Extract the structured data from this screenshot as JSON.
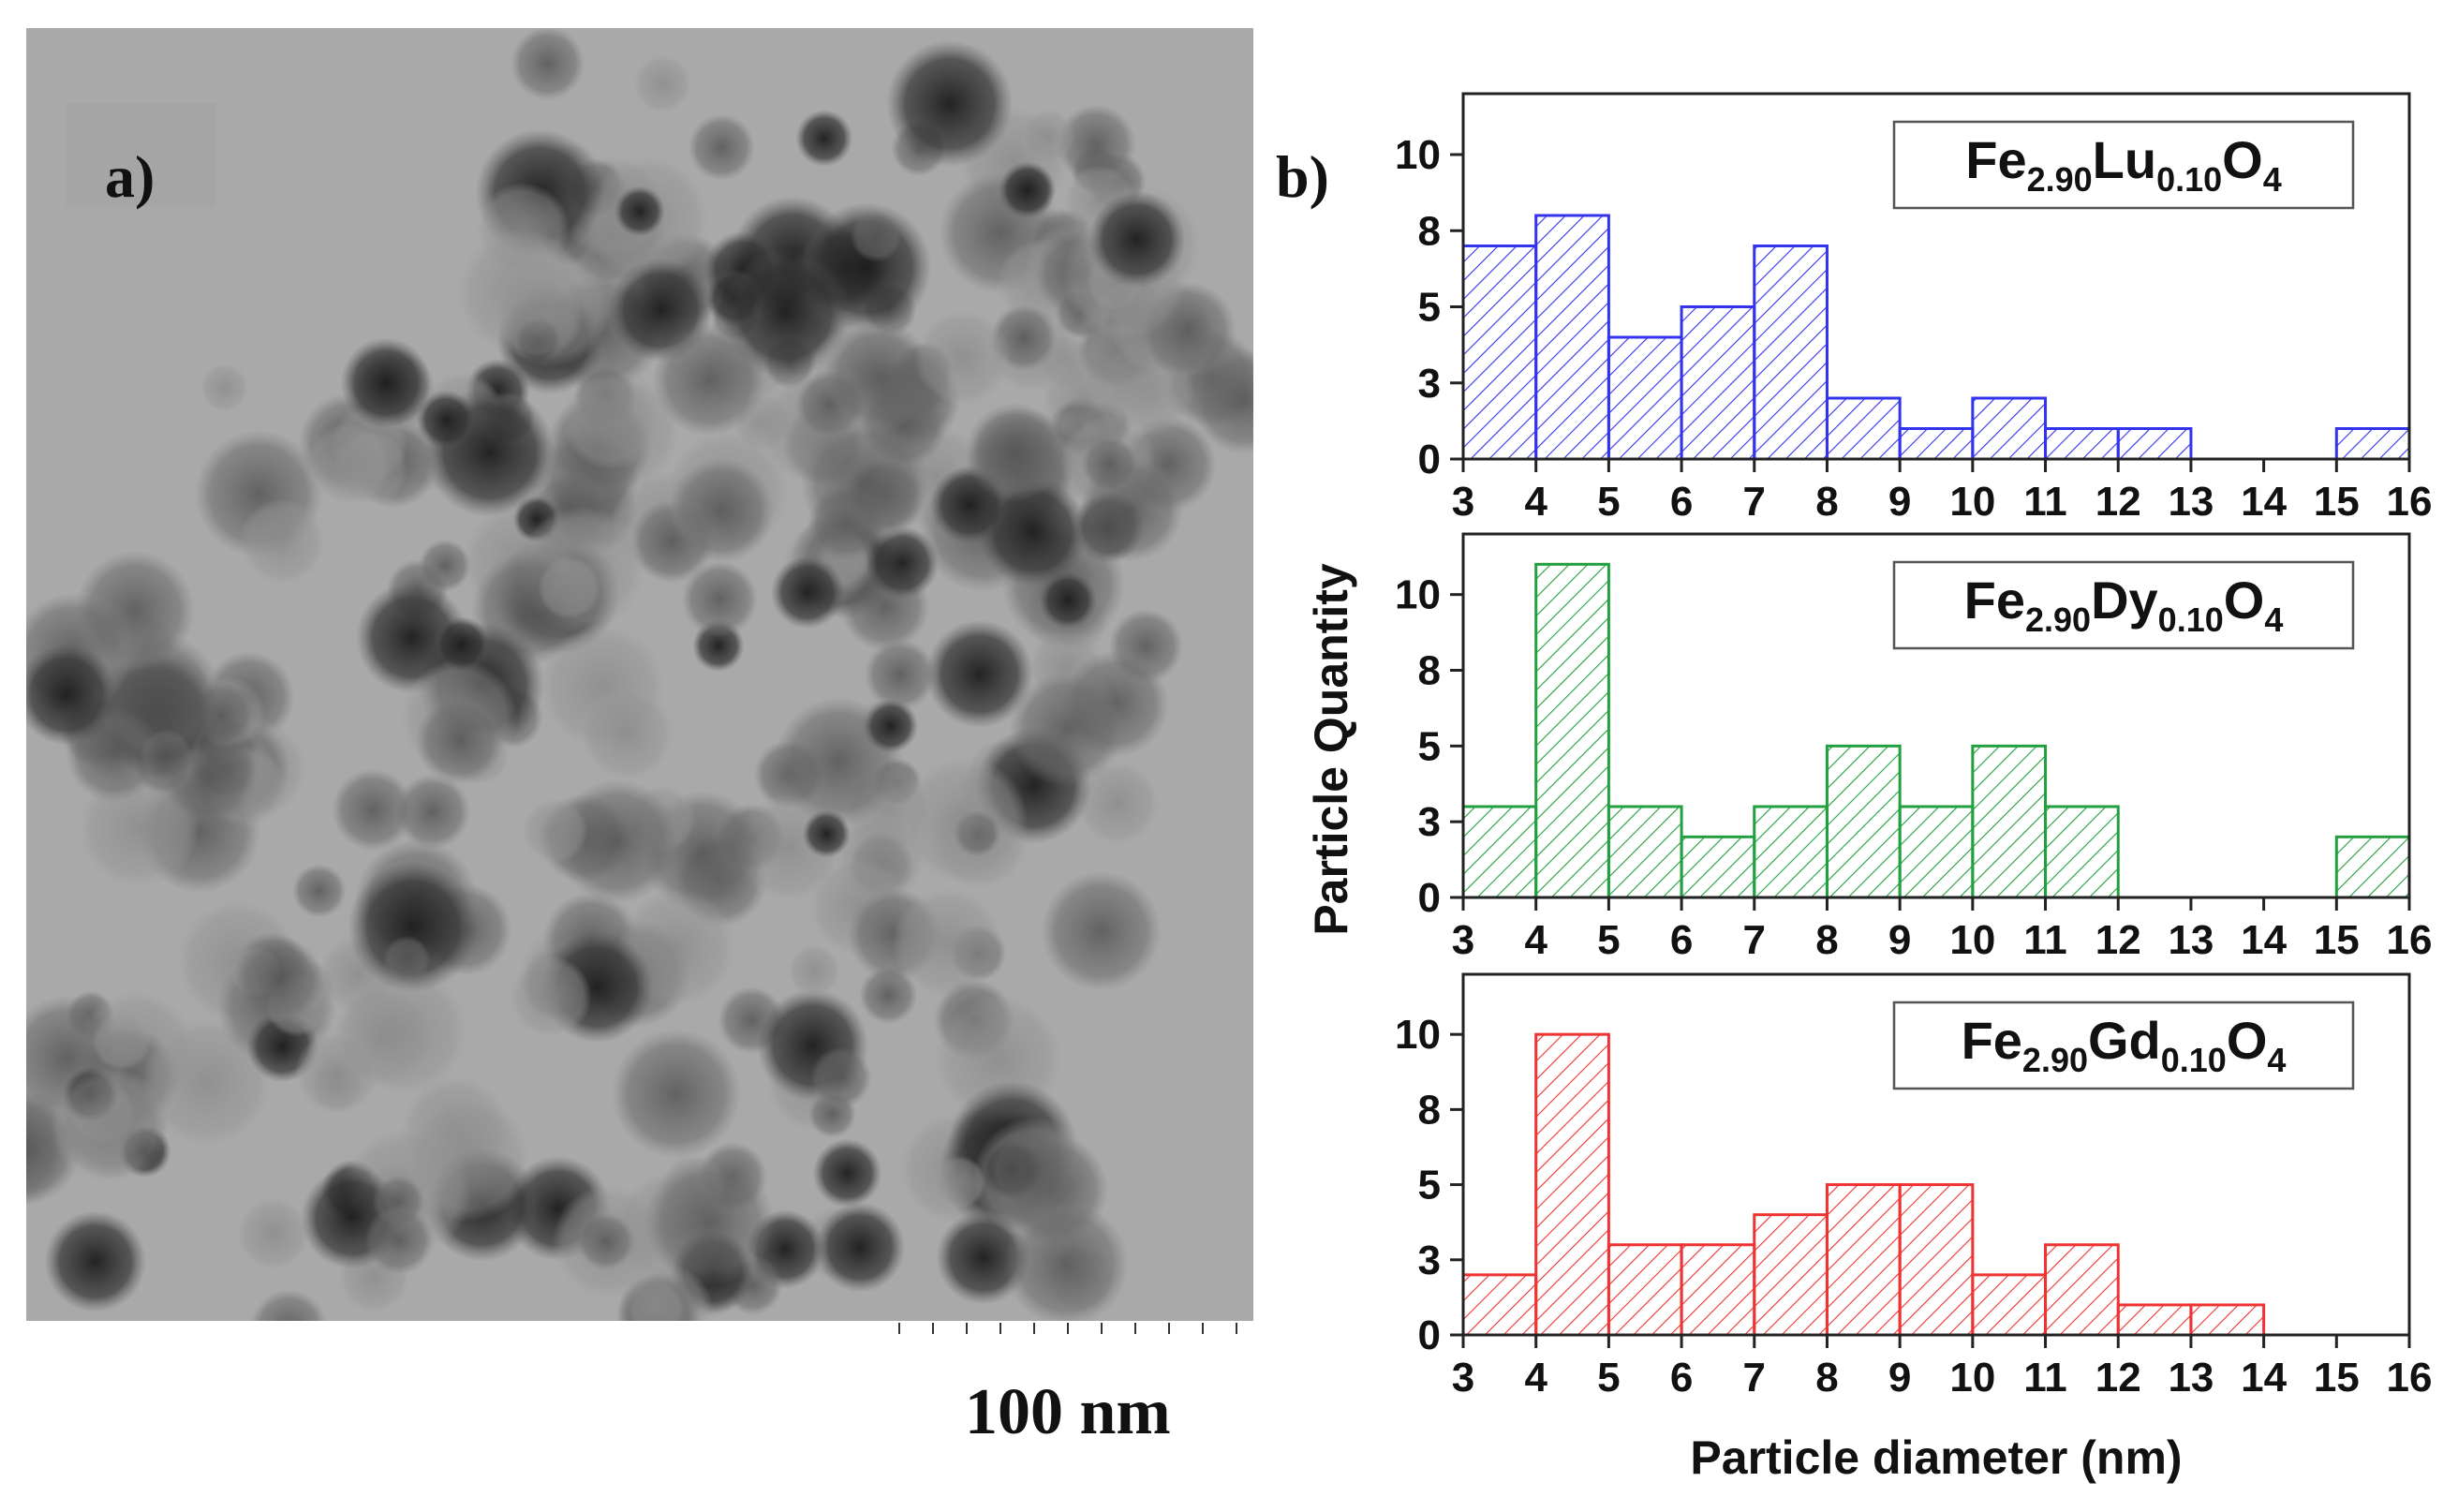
{
  "panel_a": {
    "label": "a)",
    "scale_bar_label": "100 nm"
  },
  "panel_b": {
    "label": "b)"
  },
  "colors": {
    "lu": "#3333ee",
    "dy": "#22a040",
    "gd": "#ee3333"
  },
  "chart_data": [
    {
      "type": "bar",
      "subtype": "histogram",
      "series_name": "Fe2.90Lu0.10O4",
      "legend": {
        "base": "Fe",
        "sub1": "2.90",
        "dopant": "Lu",
        "sub2": "0.10",
        "tail": "O",
        "sub3": "4"
      },
      "bin_edges": [
        3,
        4,
        5,
        6,
        7,
        8,
        9,
        10,
        11,
        12,
        13,
        14,
        15,
        16
      ],
      "values": [
        7,
        8,
        4,
        5,
        7,
        2,
        1,
        2,
        1,
        1,
        0,
        0,
        1
      ],
      "xlim": [
        3,
        16
      ],
      "ylim": [
        0,
        12
      ],
      "yticks": [
        "0",
        "3",
        "5",
        "8",
        "10"
      ],
      "ytick_values": [
        0,
        2.5,
        5,
        7.5,
        10
      ],
      "xticks": [
        "3",
        "4",
        "5",
        "6",
        "7",
        "8",
        "9",
        "10",
        "11",
        "12",
        "13",
        "14",
        "15",
        "16"
      ],
      "legend_position": "top-right",
      "color_key": "lu"
    },
    {
      "type": "bar",
      "subtype": "histogram",
      "series_name": "Fe2.90Dy0.10O4",
      "legend": {
        "base": "Fe",
        "sub1": "2.90",
        "dopant": "Dy",
        "sub2": "0.10",
        "tail": "O",
        "sub3": "4"
      },
      "bin_edges": [
        3,
        4,
        5,
        6,
        7,
        8,
        9,
        10,
        11,
        12,
        13,
        14,
        15,
        16
      ],
      "values": [
        3,
        11,
        3,
        2,
        3,
        5,
        3,
        5,
        3,
        0,
        0,
        0,
        2
      ],
      "xlim": [
        3,
        16
      ],
      "ylim": [
        0,
        12
      ],
      "yticks": [
        "0",
        "3",
        "5",
        "8",
        "10"
      ],
      "ytick_values": [
        0,
        2.5,
        5,
        7.5,
        10
      ],
      "xticks": [
        "3",
        "4",
        "5",
        "6",
        "7",
        "8",
        "9",
        "10",
        "11",
        "12",
        "13",
        "14",
        "15",
        "16"
      ],
      "legend_position": "top-right",
      "color_key": "dy"
    },
    {
      "type": "bar",
      "subtype": "histogram",
      "series_name": "Fe2.90Gd0.10O4",
      "legend": {
        "base": "Fe",
        "sub1": "2.90",
        "dopant": "Gd",
        "sub2": "0.10",
        "tail": "O",
        "sub3": "4"
      },
      "bin_edges": [
        3,
        4,
        5,
        6,
        7,
        8,
        9,
        10,
        11,
        12,
        13,
        14,
        15,
        16
      ],
      "values": [
        2,
        10,
        3,
        3,
        4,
        5,
        5,
        2,
        3,
        1,
        1,
        0,
        0
      ],
      "xlim": [
        3,
        16
      ],
      "ylim": [
        0,
        12
      ],
      "yticks": [
        "0",
        "3",
        "5",
        "8",
        "10"
      ],
      "ytick_values": [
        0,
        2.5,
        5,
        7.5,
        10
      ],
      "xticks": [
        "3",
        "4",
        "5",
        "6",
        "7",
        "8",
        "9",
        "10",
        "11",
        "12",
        "13",
        "14",
        "15",
        "16"
      ],
      "legend_position": "top-right",
      "color_key": "gd",
      "xlabel": "Particle diameter (nm)"
    }
  ],
  "shared_ylabel": "Particle Quantity"
}
